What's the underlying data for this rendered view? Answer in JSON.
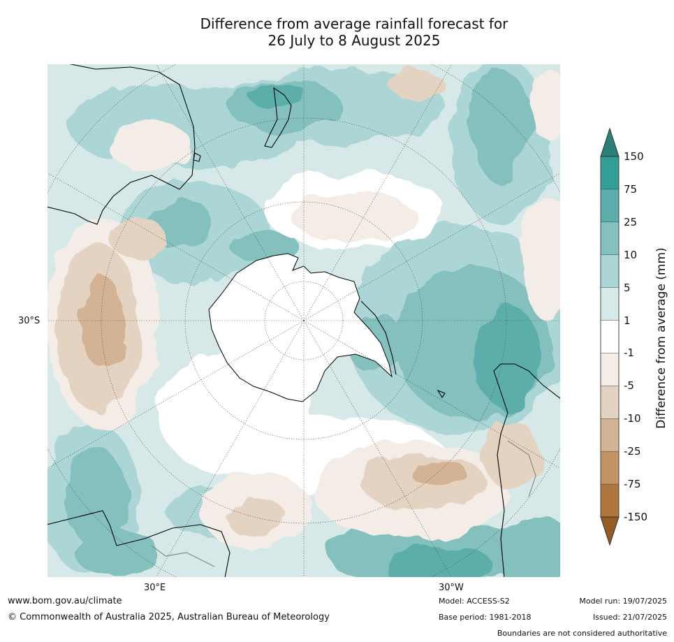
{
  "title": {
    "line1": "Difference from average rainfall forecast for",
    "line2": "26 July to 8 August 2025"
  },
  "map": {
    "projection": "south-polar",
    "lat_label": "30°S",
    "lon_labels": {
      "east": "30°E",
      "west": "30°W"
    }
  },
  "legend": {
    "title": "Difference from average (mm)",
    "ticks": [
      "150",
      "75",
      "25",
      "10",
      "5",
      "1",
      "-1",
      "-5",
      "-10",
      "-25",
      "-75",
      "-150"
    ],
    "colors": {
      "gt150": "#2a7f7a",
      "75_150": "#339e98",
      "25_75": "#5baeab",
      "10_25": "#83c0be",
      "5_10": "#acd6d5",
      "1_5": "#d6e9e8",
      "neutral": "#ffffff",
      "m5_m1": "#f4ece6",
      "m10_m5": "#e5d3c2",
      "m25_m10": "#d3b394",
      "m75_m25": "#c19365",
      "m150_m75": "#ae763d",
      "lt_m150": "#945b24"
    }
  },
  "footer": {
    "website": "www.bom.gov.au/climate",
    "copyright": "© Commonwealth of Australia 2025, Australian Bureau of Meteorology",
    "model": "Model: ACCESS-S2",
    "base_period": "Base period: 1981-2018",
    "model_run": "Model run: 19/07/2025",
    "issued": "Issued: 21/07/2025",
    "disclaimer": "Boundaries are not considered authoritative"
  }
}
